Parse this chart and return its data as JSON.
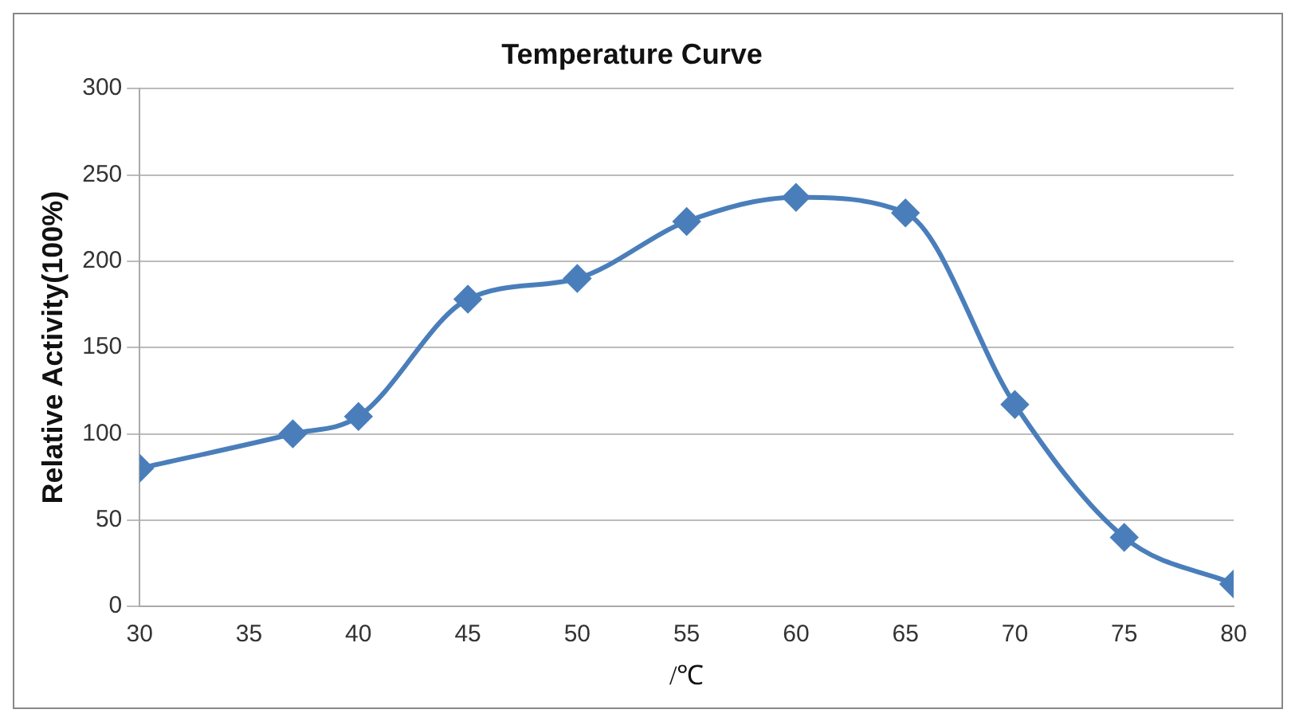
{
  "chart_data": {
    "type": "line",
    "title": "Temperature Curve",
    "xlabel": "/℃",
    "ylabel": "Relative Activity(100%)",
    "x": [
      30,
      37,
      40,
      45,
      50,
      55,
      60,
      65,
      70,
      75,
      80
    ],
    "series": [
      {
        "color": "#4a7ebb",
        "values": [
          80,
          100,
          110,
          178,
          190,
          223,
          237,
          228,
          117,
          40,
          13
        ]
      }
    ],
    "xlim": [
      30,
      80
    ],
    "xticks": [
      30,
      35,
      40,
      45,
      50,
      55,
      60,
      65,
      70,
      75,
      80
    ],
    "ylim": [
      0,
      300
    ],
    "yticks": [
      0,
      50,
      100,
      150,
      200,
      250,
      300
    ],
    "grid": "y",
    "legend": false,
    "marker": "diamond",
    "line_style": "solid"
  }
}
